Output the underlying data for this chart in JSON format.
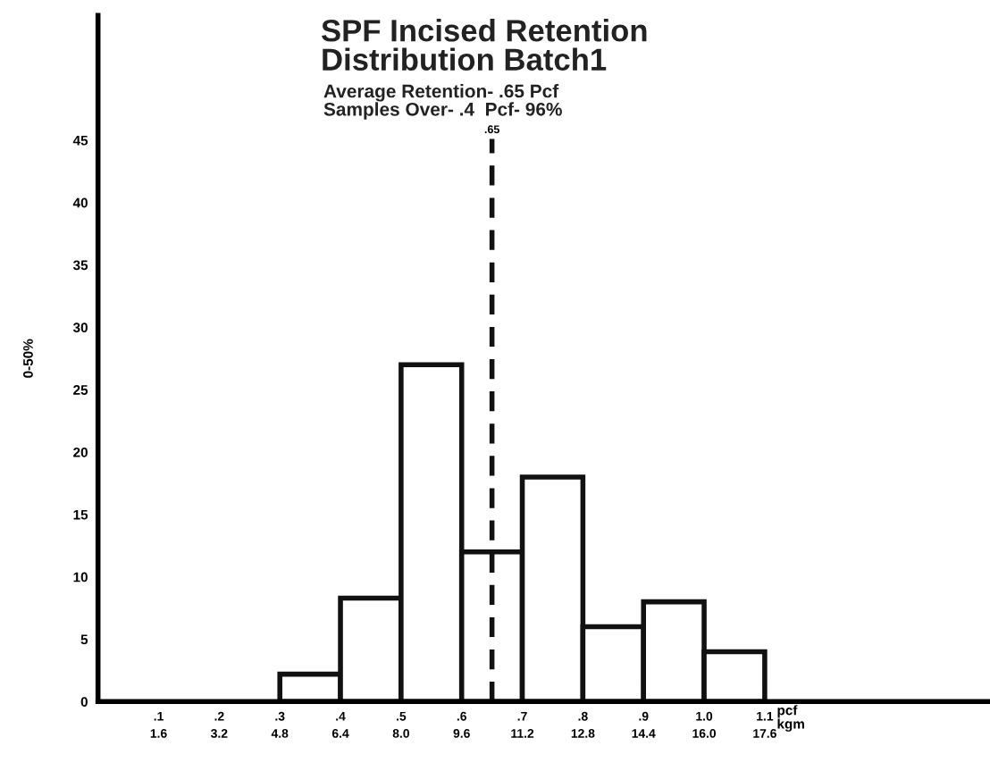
{
  "chart_data": {
    "type": "histogram",
    "title": "SPF Incised Retention\nDistribution Batch1",
    "subtitle": "Average Retention- .65 Pcf\nSamples Over- .4  Pcf- 96%",
    "xlabel": "pcf",
    "x2label": "kgm",
    "ylabel": "0-50%",
    "bins": [
      0.3,
      0.4,
      0.5,
      0.6,
      0.7,
      0.8,
      0.9,
      1.0,
      1.1
    ],
    "values": [
      2.2,
      8.3,
      27,
      12,
      18,
      6,
      8,
      4
    ],
    "color": "#ffffff",
    "xlim": [
      0,
      1.47
    ],
    "ylim": [
      0,
      55
    ],
    "xticks": [
      {
        "value": 0.1,
        "label": ".1"
      },
      {
        "value": 0.2,
        "label": ".2"
      },
      {
        "value": 0.3,
        "label": ".3"
      },
      {
        "value": 0.4,
        "label": ".4"
      },
      {
        "value": 0.5,
        "label": ".5"
      },
      {
        "value": 0.6,
        "label": ".6"
      },
      {
        "value": 0.7,
        "label": ".7"
      },
      {
        "value": 0.8,
        "label": ".8"
      },
      {
        "value": 0.9,
        "label": ".9"
      },
      {
        "value": 1.0,
        "label": "1.0"
      },
      {
        "value": 1.1,
        "label": "1.1"
      }
    ],
    "x2lim": [
      0,
      23.52
    ],
    "x2ticks": [
      1.6,
      3.2,
      4.8,
      6.4,
      {
        "value": 8.0,
        "label": "8.0"
      },
      9.6,
      11.2,
      12.8,
      14.4,
      {
        "value": 16.0,
        "label": "16.0"
      },
      17.6
    ],
    "yticks": [
      0,
      5,
      10,
      15,
      20,
      25,
      30,
      35,
      40,
      45
    ],
    "ref_lines": [
      {
        "axis": "x",
        "value": 0.65,
        "label": ".65",
        "line_style": "dashed",
        "color": "#111111"
      }
    ],
    "grid": false,
    "legend": false
  }
}
